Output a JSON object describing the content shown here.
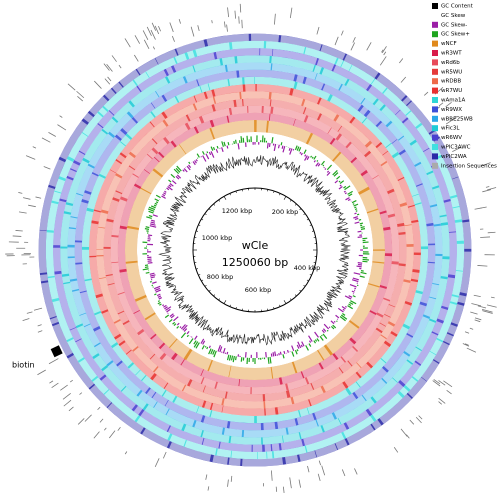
{
  "map": {
    "center_name": "wCle",
    "center_length": "1250060 bp",
    "scale_labels": [
      "200 kbp",
      "400 kbp",
      "600 kbp",
      "800 kbp",
      "1000 kbp",
      "1200 kbp"
    ],
    "annotation": "biotin",
    "legend": [
      {
        "name": "GC Content",
        "color": "#000000"
      },
      {
        "name": "GC Skew",
        "color": null
      },
      {
        "name": "GC Skew-",
        "color": "#9b1fa6"
      },
      {
        "name": "GC Skew+",
        "color": "#1fa41f"
      },
      {
        "name": "wNCF",
        "color": "#e0891c"
      },
      {
        "name": "wR3WT",
        "color": "#d81b4a"
      },
      {
        "name": "wRd6b",
        "color": "#e84b5a"
      },
      {
        "name": "wR5WU",
        "color": "#e53a3a"
      },
      {
        "name": "wRDBB",
        "color": "#ee6a4a"
      },
      {
        "name": "wR7WU",
        "color": "#e8302e"
      },
      {
        "name": "wAma1A",
        "color": "#2fd6d6"
      },
      {
        "name": "wR9WX",
        "color": "#3c4fd8"
      },
      {
        "name": "wBRE25WB",
        "color": "#2aa7e8"
      },
      {
        "name": "wFic3L",
        "color": "#1ecbd6"
      },
      {
        "name": "wR6WV",
        "color": "#4a3fd0"
      },
      {
        "name": "wPIC3AWC",
        "color": "#3fe0e0"
      },
      {
        "name": "wPIC2WA",
        "color": "#2a2aa8"
      },
      {
        "name": "Insertion Sequences",
        "color": "#aaaaaa"
      }
    ]
  }
}
